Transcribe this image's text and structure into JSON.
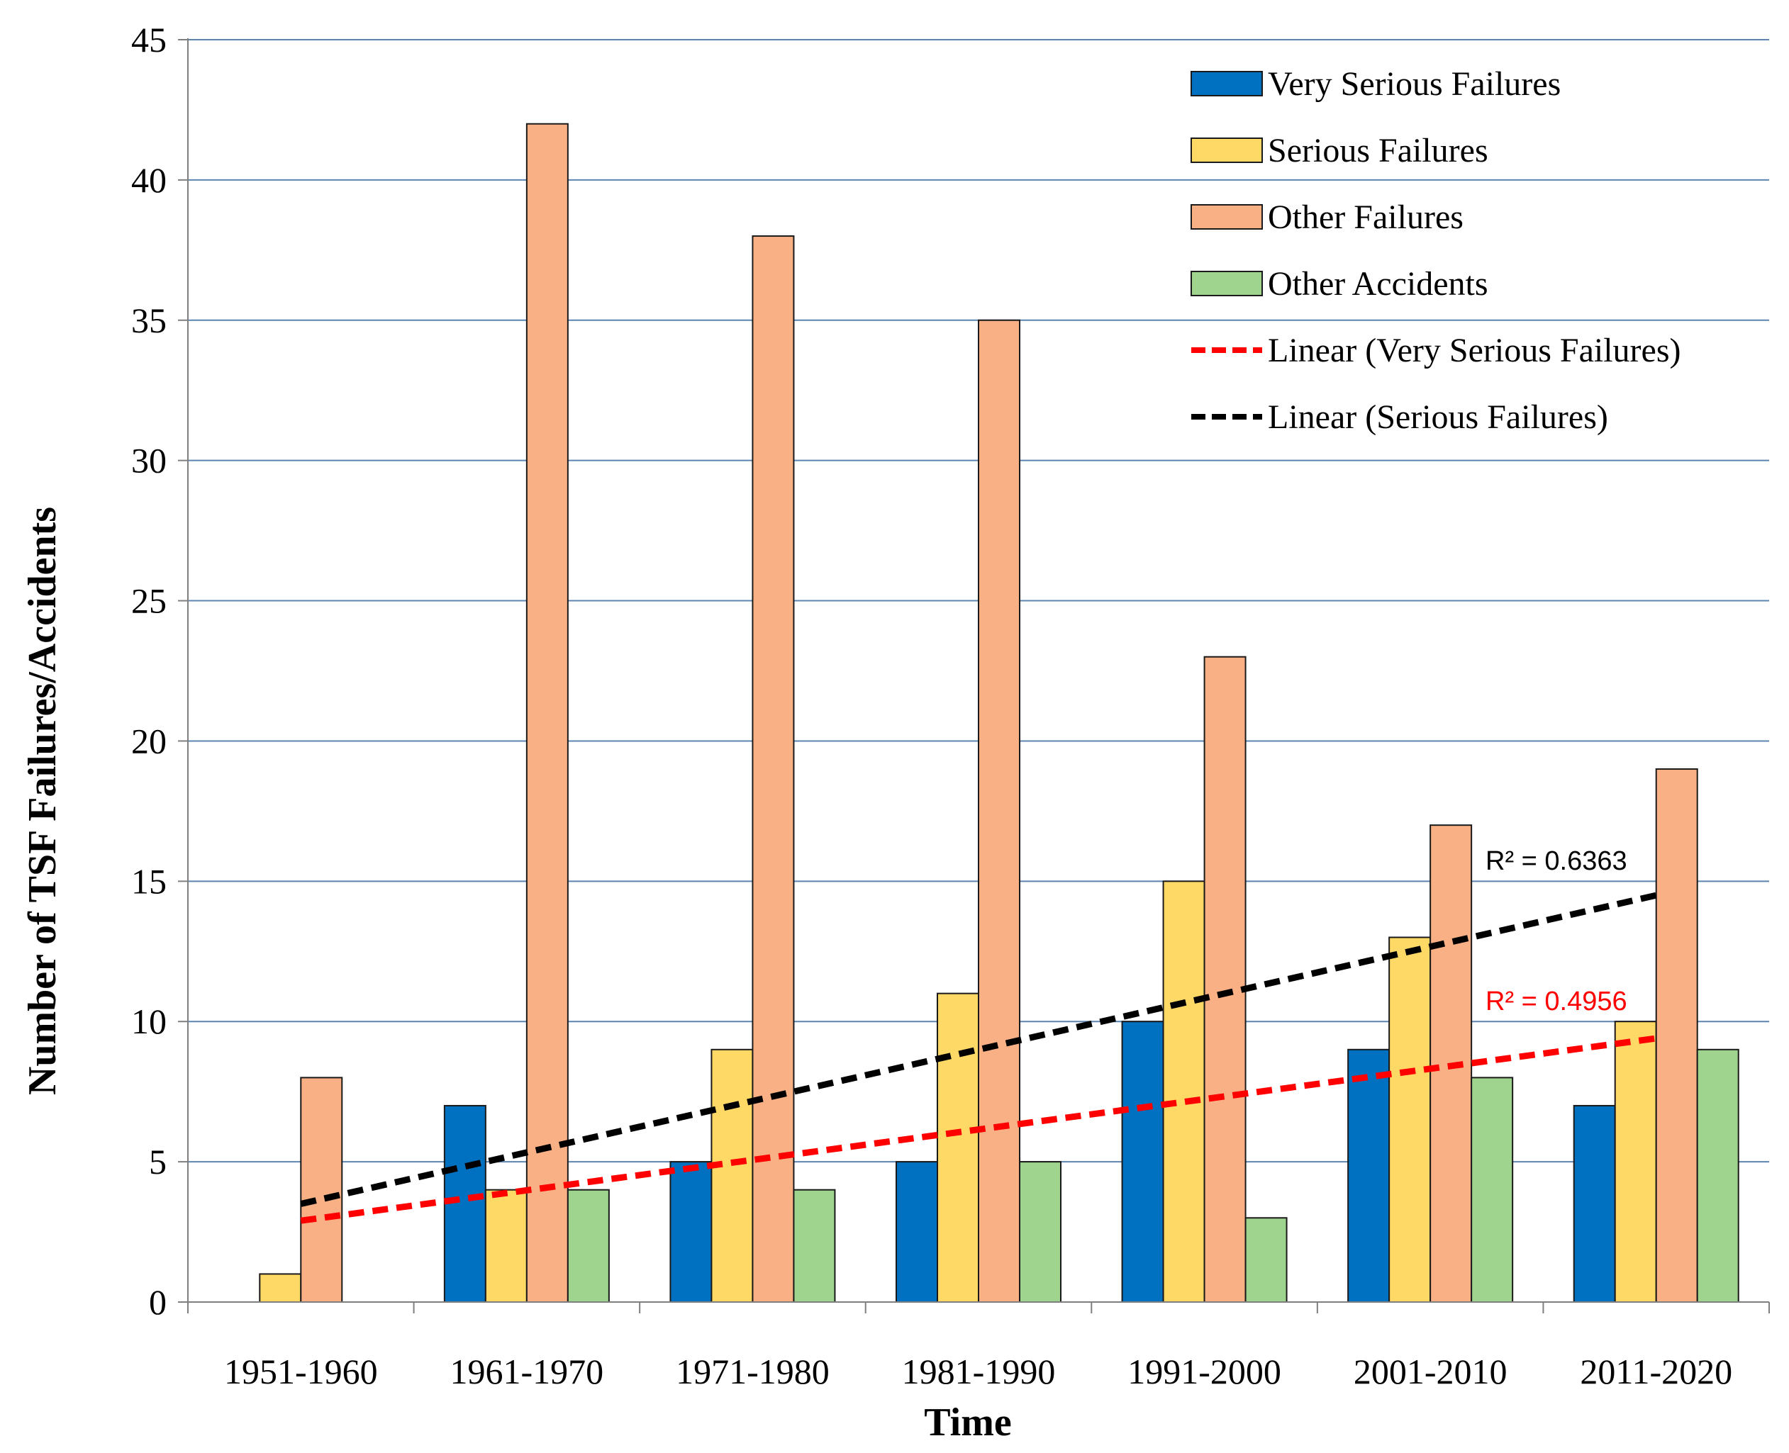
{
  "chart_data": {
    "type": "bar",
    "title": "",
    "xlabel": "Time",
    "ylabel": "Number of TSF Failures/Accidents",
    "ylim": [
      0,
      45
    ],
    "yticks": [
      0,
      5,
      10,
      15,
      20,
      25,
      30,
      35,
      40,
      45
    ],
    "grid": true,
    "legend_position": "top-right",
    "categories": [
      "1951-1960",
      "1961-1970",
      "1971-1980",
      "1981-1990",
      "1991-2000",
      "2001-2010",
      "2011-2020"
    ],
    "series": [
      {
        "name": "Very Serious Failures",
        "color": "#0070c0",
        "values": [
          0,
          7,
          5,
          5,
          10,
          9,
          7
        ]
      },
      {
        "name": "Serious Failures",
        "color": "#ffd966",
        "values": [
          1,
          4,
          9,
          11,
          15,
          13,
          10
        ]
      },
      {
        "name": "Other Failures",
        "color": "#fab085",
        "values": [
          8,
          42,
          38,
          35,
          23,
          17,
          19
        ]
      },
      {
        "name": "Other Accidents",
        "color": "#9fd48f",
        "values": [
          0,
          4,
          4,
          5,
          3,
          8,
          9
        ]
      }
    ],
    "trendlines": [
      {
        "name": "Linear (Very Serious Failures)",
        "color": "#ff0000",
        "start": 2.9,
        "end": 9.4,
        "r2_text": "R² = 0.4956"
      },
      {
        "name": "Linear (Serious Failures)",
        "color": "#000000",
        "start": 3.5,
        "end": 14.5,
        "r2_text": "R² = 0.6363"
      }
    ]
  }
}
